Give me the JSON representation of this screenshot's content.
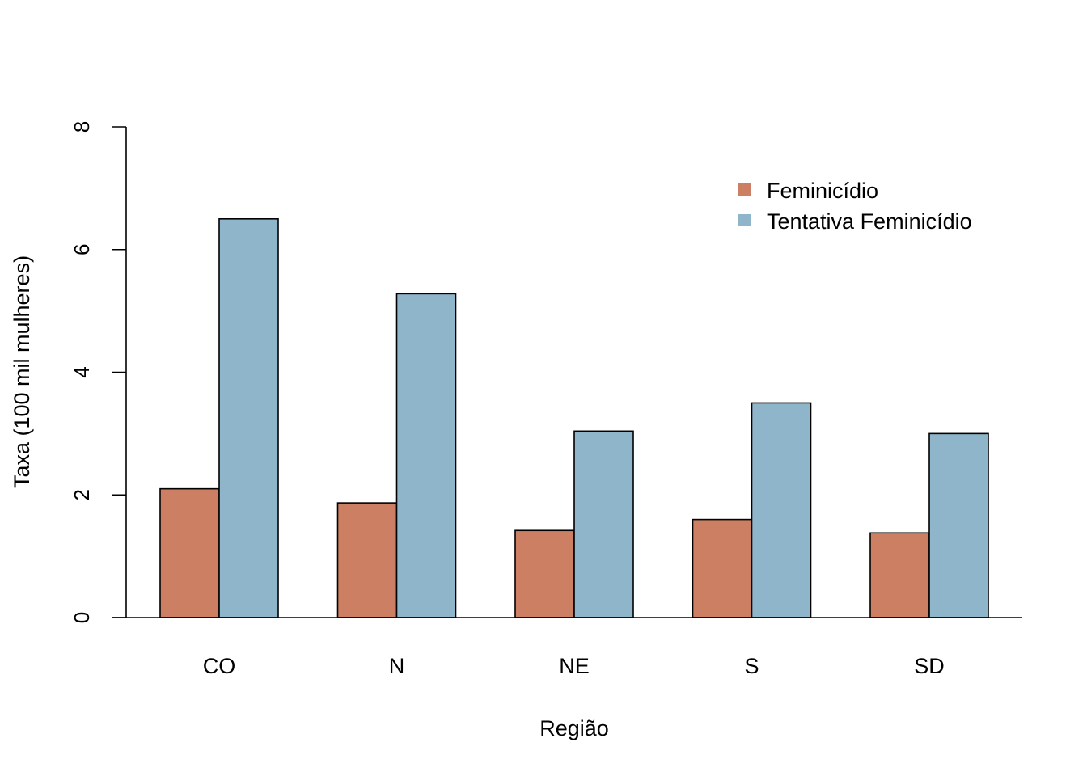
{
  "chart_data": {
    "type": "bar",
    "categories": [
      "CO",
      "N",
      "NE",
      "S",
      "SD"
    ],
    "series": [
      {
        "name": "Feminicídio",
        "color": "#CC7F62",
        "values": [
          2.1,
          1.87,
          1.42,
          1.6,
          1.38
        ]
      },
      {
        "name": "Tentativa Feminicídio",
        "color": "#8FB5CB",
        "values": [
          6.5,
          5.28,
          3.04,
          3.5,
          3.0
        ]
      }
    ],
    "xlabel": "Região",
    "ylabel": "Taxa (100 mil mulheres)",
    "ylim": [
      0,
      8
    ],
    "yticks": [
      "0",
      "2",
      "4",
      "6",
      "8"
    ],
    "legend_position": "top-right",
    "grid": false
  }
}
